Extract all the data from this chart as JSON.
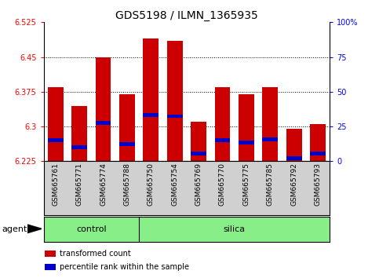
{
  "title": "GDS5198 / ILMN_1365935",
  "samples": [
    "GSM665761",
    "GSM665771",
    "GSM665774",
    "GSM665788",
    "GSM665750",
    "GSM665754",
    "GSM665769",
    "GSM665770",
    "GSM665775",
    "GSM665785",
    "GSM665792",
    "GSM665793"
  ],
  "bar_tops": [
    6.385,
    6.345,
    6.45,
    6.37,
    6.49,
    6.485,
    6.31,
    6.385,
    6.37,
    6.385,
    6.295,
    6.305
  ],
  "blue_positions": [
    6.27,
    6.255,
    6.308,
    6.262,
    6.325,
    6.322,
    6.242,
    6.27,
    6.265,
    6.272,
    6.232,
    6.242
  ],
  "bar_bottom": 6.225,
  "ymin": 6.225,
  "ymax": 6.525,
  "yticks": [
    6.225,
    6.3,
    6.375,
    6.45,
    6.525
  ],
  "ytick_labels": [
    "6.225",
    "6.3",
    "6.375",
    "6.45",
    "6.525"
  ],
  "y2ticks": [
    0,
    25,
    50,
    75,
    100
  ],
  "y2tick_labels": [
    "0",
    "25",
    "50",
    "75",
    "100%"
  ],
  "gridlines": [
    6.3,
    6.375,
    6.45
  ],
  "bar_color": "#cc0000",
  "blue_color": "#0000cc",
  "bar_width": 0.65,
  "control_count": 4,
  "control_label": "control",
  "silica_label": "silica",
  "agent_label": "agent",
  "legend_red": "transformed count",
  "legend_blue": "percentile rank within the sample",
  "gray_color": "#d0d0d0",
  "green_color": "#88ee88",
  "title_fontsize": 10,
  "tick_fontsize": 7,
  "label_fontsize": 8,
  "blue_bar_height": 0.008
}
